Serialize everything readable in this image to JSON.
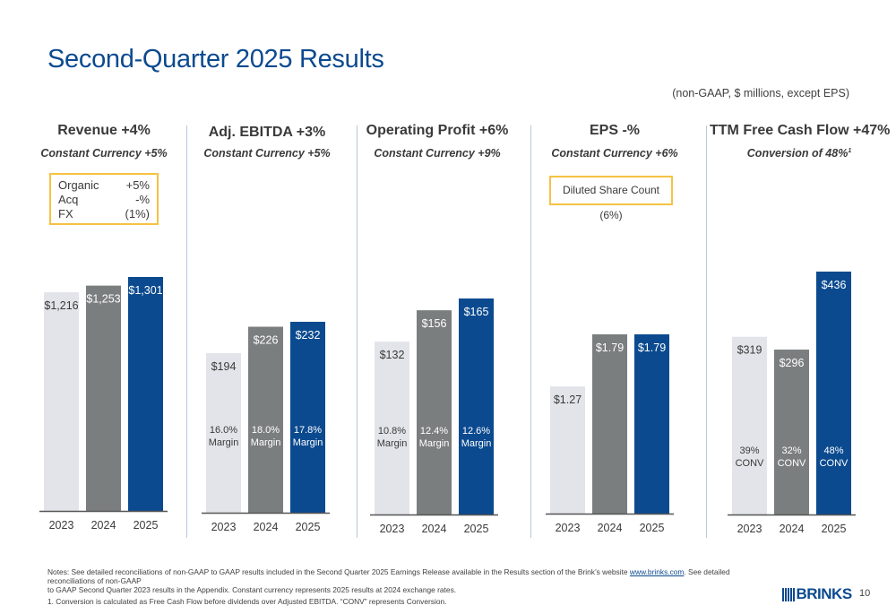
{
  "slide": {
    "title": "Second-Quarter 2025 Results",
    "units_note": "(non-GAAP, $ millions, except EPS)",
    "page_number": "10",
    "logo_text": "BRINKS"
  },
  "colors": {
    "title": "#0b4a8f",
    "bar_2023": "#e2e4e9",
    "bar_2024": "#7b7e7f",
    "bar_2025": "#0b4a8f",
    "callout_border": "#f5c242",
    "divider": "#b7c9de"
  },
  "panels": [
    {
      "heading": "Revenue +4%",
      "subheading": "Constant Currency +5%",
      "callout": {
        "rows": [
          {
            "label": "Organic",
            "value": "+5%"
          },
          {
            "label": "Acq",
            "value": "-%"
          },
          {
            "label": "FX",
            "value": "(1%)"
          }
        ]
      }
    },
    {
      "heading": "Adj. EBITDA  +3%",
      "subheading": "Constant Currency +5%"
    },
    {
      "heading": "Operating Profit +6%",
      "subheading": "Constant Currency +9%"
    },
    {
      "heading": "EPS  -%",
      "subheading": "Constant Currency +6%",
      "callout": {
        "text": "Diluted Share Count (6%)"
      }
    },
    {
      "heading": "TTM Free Cash Flow +47%",
      "subheading": "Conversion of 48%",
      "subheading_footnote": "1"
    }
  ],
  "chart_data": [
    {
      "type": "bar",
      "title": "Revenue +4%",
      "categories": [
        "2023",
        "2024",
        "2025"
      ],
      "values": [
        1216,
        1253,
        1301
      ],
      "value_labels": [
        "$1,216",
        "$1,253",
        "$1,301"
      ],
      "inner_labels": [],
      "ylim": [
        0,
        1301
      ]
    },
    {
      "type": "bar",
      "title": "Adj. EBITDA +3%",
      "categories": [
        "2023",
        "2024",
        "2025"
      ],
      "values": [
        194,
        226,
        232
      ],
      "value_labels": [
        "$194",
        "$226",
        "$232"
      ],
      "inner_labels": [
        [
          "16.0%",
          "Margin"
        ],
        [
          "18.0%",
          "Margin"
        ],
        [
          "17.8%",
          "Margin"
        ]
      ],
      "ylim": [
        0,
        232
      ]
    },
    {
      "type": "bar",
      "title": "Operating Profit +6%",
      "categories": [
        "2023",
        "2024",
        "2025"
      ],
      "values": [
        132,
        156,
        165
      ],
      "value_labels": [
        "$132",
        "$156",
        "$165"
      ],
      "inner_labels": [
        [
          "10.8%",
          "Margin"
        ],
        [
          "12.4%",
          "Margin"
        ],
        [
          "12.6%",
          "Margin"
        ]
      ],
      "ylim": [
        0,
        165
      ]
    },
    {
      "type": "bar",
      "title": "EPS -%",
      "categories": [
        "2023",
        "2024",
        "2025"
      ],
      "values": [
        1.27,
        1.79,
        1.79
      ],
      "value_labels": [
        "$1.27",
        "$1.79",
        "$1.79"
      ],
      "inner_labels": [],
      "ylim": [
        0,
        1.79
      ]
    },
    {
      "type": "bar",
      "title": "TTM Free Cash Flow +47%",
      "categories": [
        "2023",
        "2024",
        "2025"
      ],
      "values": [
        319,
        296,
        436
      ],
      "value_labels": [
        "$319",
        "$296",
        "$436"
      ],
      "inner_labels": [
        [
          "39%",
          "CONV"
        ],
        [
          "32%",
          "CONV"
        ],
        [
          "48%",
          "CONV"
        ]
      ],
      "ylim": [
        0,
        436
      ]
    }
  ],
  "notes": {
    "line1_pre": "Notes: See detailed reconciliations of non-GAAP to GAAP results included in the Second Quarter 2025 Earnings Release available in the Results section of the Brink’s website ",
    "link": "www.brinks.com",
    "line1_post": ". See detailed reconciliations of non-GAAP",
    "line2": "to GAAP Second Quarter 2023 results in the Appendix. Constant currency represents 2025 results at 2024 exchange rates.",
    "footnote1": "1. Conversion is calculated as Free Cash Flow before dividends over Adjusted EBITDA. “CONV” represents Conversion."
  }
}
